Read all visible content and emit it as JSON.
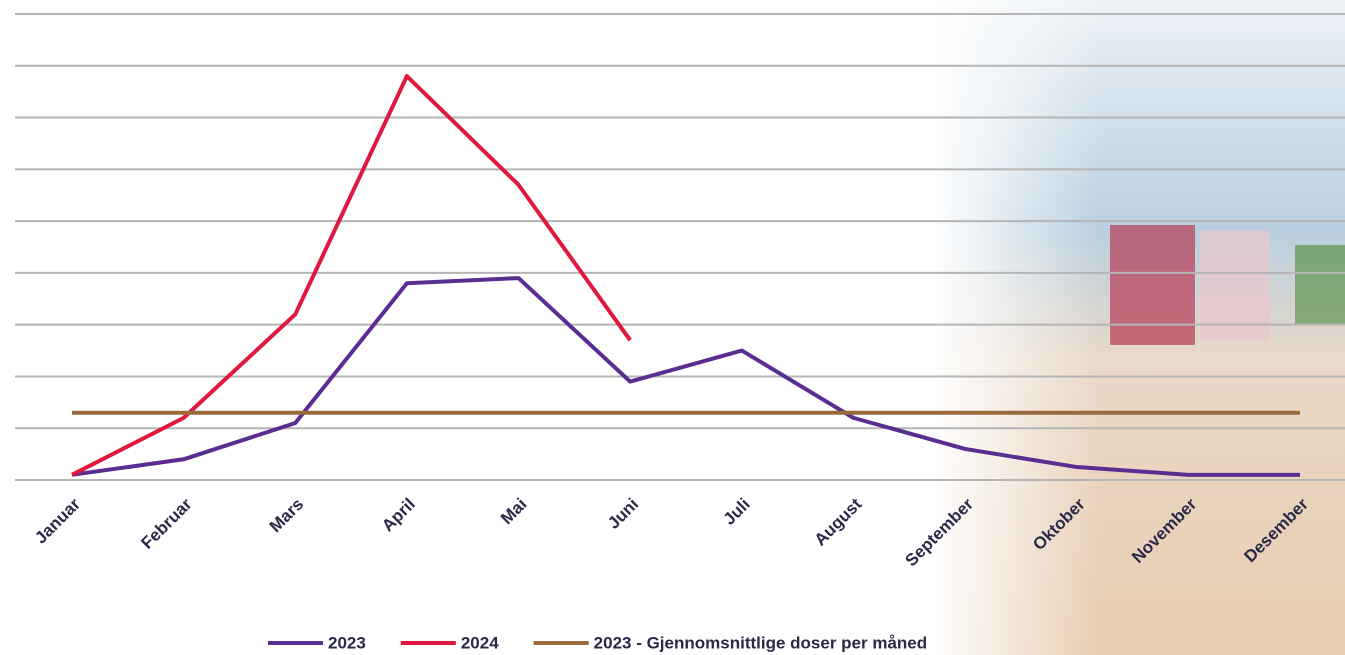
{
  "chart_data": {
    "type": "line",
    "categories": [
      "Januar",
      "Februar",
      "Mars",
      "April",
      "Mai",
      "Juni",
      "Juli",
      "August",
      "September",
      "Oktober",
      "November",
      "Desember"
    ],
    "series": [
      {
        "name": "2023",
        "color": "#5a2d91",
        "values": [
          0.1,
          0.4,
          1.1,
          3.8,
          3.9,
          1.9,
          2.5,
          1.2,
          0.6,
          0.25,
          0.1,
          0.1
        ]
      },
      {
        "name": "2024",
        "color": "#e0173f",
        "values": [
          0.1,
          1.2,
          3.2,
          7.8,
          5.7,
          2.7,
          null,
          null,
          null,
          null,
          null,
          null
        ]
      },
      {
        "name": "2023 - Gjennomsnittlige doser per måned",
        "color": "#9b6a3c",
        "values": [
          1.3,
          1.3,
          1.3,
          1.3,
          1.3,
          1.3,
          1.3,
          1.3,
          1.3,
          1.3,
          1.3,
          1.3
        ]
      }
    ],
    "ylim": [
      0,
      9
    ],
    "yticks": [
      0,
      1,
      2,
      3,
      4,
      5,
      6,
      7,
      8,
      9
    ],
    "grid": true
  }
}
